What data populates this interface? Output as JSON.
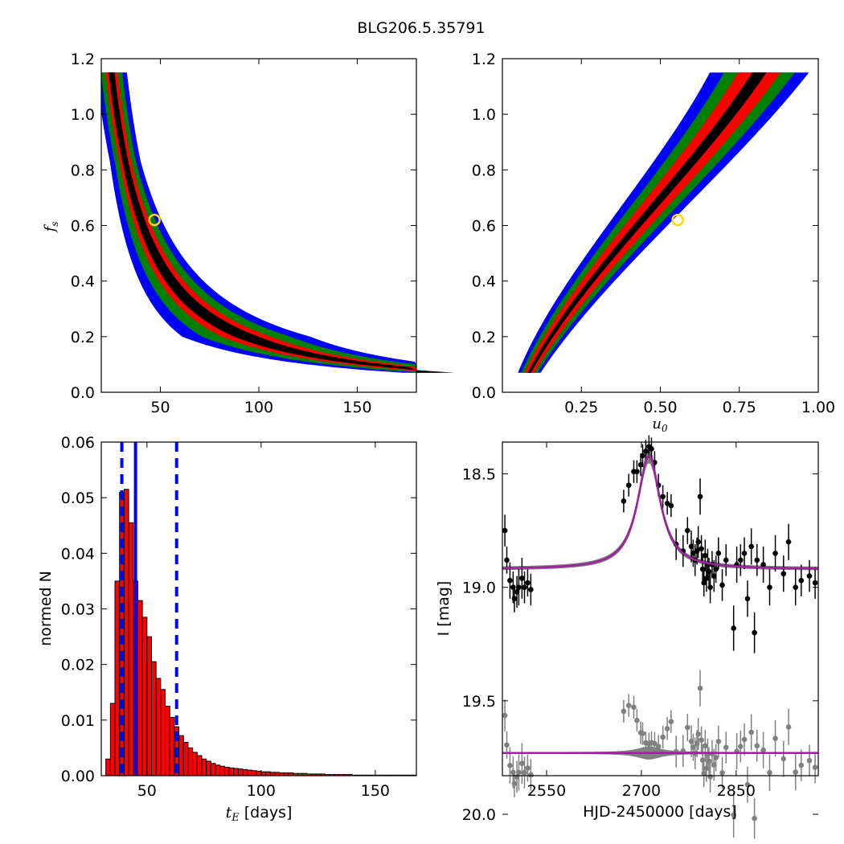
{
  "figure_title": "BLG206.5.35791",
  "colors": {
    "sigma1": "#ff0000",
    "sigma2": "#008000",
    "sigma3": "#0000ff",
    "best": "#000000",
    "marker": "#ffd700",
    "model": "#a020a0",
    "band": "#808080"
  },
  "chart_data": [
    {
      "id": "fs_vs_tE",
      "type": "heatmap",
      "xlim": [
        20,
        180
      ],
      "ylim": [
        0.0,
        1.2
      ],
      "xticks": [
        50,
        100,
        150
      ],
      "yticks": [
        0.0,
        0.2,
        0.4,
        0.6,
        0.8,
        1.0,
        1.2
      ],
      "xtick_labels": [
        "50",
        "100",
        "150"
      ],
      "ytick_labels": [
        "0.0",
        "0.2",
        "0.4",
        "0.6",
        "0.8",
        "1.0",
        "1.2"
      ],
      "xlabel": "",
      "ylabel": "f_s",
      "ylabel_main": "f",
      "ylabel_sub": "s",
      "relation": "tE = 28 / fs^0.75",
      "fs_range": [
        0.07,
        1.15
      ],
      "widths_x": {
        "black": 2.5,
        "red": 5,
        "green": 9,
        "blue": 13
      },
      "best_fit": {
        "x": 47,
        "y": 0.62
      }
    },
    {
      "id": "fs_vs_u0",
      "type": "heatmap",
      "xlim": [
        0.0,
        1.0
      ],
      "ylim": [
        0.0,
        1.2
      ],
      "xticks": [
        0.25,
        0.5,
        0.75,
        1.0
      ],
      "yticks": [
        0.0,
        0.2,
        0.4,
        0.6,
        0.8,
        1.0,
        1.2
      ],
      "xtick_labels": [
        "0.25",
        "0.50",
        "0.75",
        "1.00"
      ],
      "ytick_labels": [
        "0.0",
        "0.2",
        "0.4",
        "0.6",
        "0.8",
        "1.0",
        "1.2"
      ],
      "xlabel": "u_0",
      "xlabel_main": "u",
      "xlabel_sub": "0",
      "ylabel": "",
      "relation": "u0 = 0.085 + 0.47*(fs-0.07) + 0.47*(fs-0.07)^2 - 0.26*(fs-0.07)^3",
      "fs_range": [
        0.07,
        1.15
      ],
      "widths_x": {
        "black": 0.01,
        "red": 0.03,
        "green": 0.05,
        "blue": 0.07
      },
      "best_fit": {
        "x": 0.555,
        "y": 0.62
      }
    },
    {
      "id": "tE_histogram",
      "type": "bar",
      "xlim": [
        30,
        168
      ],
      "ylim": [
        0.0,
        0.06
      ],
      "xticks": [
        50,
        100,
        150
      ],
      "yticks": [
        0.0,
        0.01,
        0.02,
        0.03,
        0.04,
        0.05,
        0.06
      ],
      "xtick_labels": [
        "50",
        "100",
        "150"
      ],
      "ytick_labels": [
        "0.00",
        "0.01",
        "0.02",
        "0.03",
        "0.04",
        "0.05",
        "0.06"
      ],
      "xlabel": "t_E [days]",
      "xlabel_main": "t",
      "xlabel_sub": "E",
      "xlabel_rest": " [days]",
      "ylabel": "normed N",
      "bin_start": 32,
      "bin_width": 2,
      "values": [
        0.003,
        0.013,
        0.035,
        0.051,
        0.0515,
        0.0455,
        0.035,
        0.0315,
        0.0285,
        0.025,
        0.0205,
        0.0175,
        0.0155,
        0.0125,
        0.0105,
        0.0088,
        0.0072,
        0.006,
        0.005,
        0.0042,
        0.0036,
        0.003,
        0.0026,
        0.0022,
        0.0019,
        0.0017,
        0.0015,
        0.0014,
        0.0013,
        0.0012,
        0.0011,
        0.001,
        0.0009,
        0.0008,
        0.0007,
        0.0007,
        0.0006,
        0.0006,
        0.0005,
        0.0005,
        0.0005,
        0.0004,
        0.0004,
        0.0004,
        0.0003,
        0.0003,
        0.0003,
        0.0003,
        0.0002,
        0.0002,
        0.0002,
        0.0002,
        0.0002,
        0.0002,
        0.0001,
        0.0001,
        0.0001,
        0.0001,
        0.0001,
        0.0001,
        0.0001,
        0.0001,
        0.0001,
        0.0001,
        0.0001,
        0.0001,
        0.0001,
        0.0001
      ],
      "vlines": {
        "median": 45,
        "lower": 39,
        "upper": 63
      }
    },
    {
      "id": "light_curve",
      "type": "scatter",
      "xlim": [
        2480,
        2980
      ],
      "ylim": [
        19.83,
        18.36
      ],
      "xticks": [
        2550,
        2700,
        2850
      ],
      "yticks": [
        18.5,
        19.0,
        19.5,
        20.0
      ],
      "xtick_labels": [
        "2550",
        "2700",
        "2850"
      ],
      "ytick_labels": [
        "18.5",
        "19.0",
        "19.5",
        "20.0"
      ],
      "xlabel": "HJD-2450000 [days]",
      "ylabel": "I [mag]",
      "model": {
        "baseline": 18.92,
        "amplitude": 0.5,
        "t0": 2712,
        "width": 22
      },
      "residual_offset": 19.73,
      "points": [
        [
          2484,
          18.75,
          0.07
        ],
        [
          2487,
          18.88,
          0.06
        ],
        [
          2492,
          18.97,
          0.08
        ],
        [
          2497,
          19.0,
          0.07
        ],
        [
          2499,
          19.05,
          0.06
        ],
        [
          2503,
          19.02,
          0.07
        ],
        [
          2506,
          19.0,
          0.08
        ],
        [
          2511,
          18.96,
          0.09
        ],
        [
          2515,
          19.0,
          0.07
        ],
        [
          2520,
          18.98,
          0.06
        ],
        [
          2525,
          19.01,
          0.07
        ],
        [
          2672,
          18.62,
          0.05
        ],
        [
          2680,
          18.55,
          0.05
        ],
        [
          2688,
          18.49,
          0.05
        ],
        [
          2693,
          18.49,
          0.05
        ],
        [
          2699,
          18.46,
          0.05
        ],
        [
          2702,
          18.42,
          0.05
        ],
        [
          2707,
          18.4,
          0.05
        ],
        [
          2712,
          18.38,
          0.05
        ],
        [
          2716,
          18.39,
          0.05
        ],
        [
          2721,
          18.45,
          0.05
        ],
        [
          2727,
          18.55,
          0.05
        ],
        [
          2734,
          18.6,
          0.05
        ],
        [
          2741,
          18.63,
          0.05
        ],
        [
          2747,
          18.64,
          0.05
        ],
        [
          2755,
          18.81,
          0.07
        ],
        [
          2766,
          18.84,
          0.07
        ],
        [
          2773,
          18.75,
          0.06
        ],
        [
          2779,
          18.82,
          0.07
        ],
        [
          2782,
          18.85,
          0.06
        ],
        [
          2785,
          18.88,
          0.07
        ],
        [
          2788,
          18.84,
          0.06
        ],
        [
          2790,
          18.8,
          0.07
        ],
        [
          2793,
          18.6,
          0.08
        ],
        [
          2795,
          18.83,
          0.06
        ],
        [
          2797,
          18.92,
          0.07
        ],
        [
          2799,
          18.98,
          0.06
        ],
        [
          2801,
          18.86,
          0.07
        ],
        [
          2803,
          18.96,
          0.06
        ],
        [
          2805,
          18.9,
          0.07
        ],
        [
          2807,
          18.93,
          0.06
        ],
        [
          2809,
          19.0,
          0.07
        ],
        [
          2812,
          18.9,
          0.06
        ],
        [
          2815,
          18.95,
          0.07
        ],
        [
          2818,
          18.92,
          0.06
        ],
        [
          2822,
          18.85,
          0.07
        ],
        [
          2828,
          18.99,
          0.07
        ],
        [
          2834,
          18.88,
          0.07
        ],
        [
          2846,
          19.18,
          0.1
        ],
        [
          2851,
          18.9,
          0.08
        ],
        [
          2857,
          18.88,
          0.07
        ],
        [
          2863,
          18.85,
          0.07
        ],
        [
          2868,
          19.05,
          0.08
        ],
        [
          2874,
          18.82,
          0.08
        ],
        [
          2879,
          19.2,
          0.09
        ],
        [
          2883,
          18.88,
          0.07
        ],
        [
          2893,
          18.9,
          0.08
        ],
        [
          2903,
          19.0,
          0.08
        ],
        [
          2912,
          18.85,
          0.08
        ],
        [
          2925,
          18.94,
          0.08
        ],
        [
          2933,
          18.8,
          0.08
        ],
        [
          2944,
          19.0,
          0.08
        ],
        [
          2953,
          18.97,
          0.07
        ],
        [
          2966,
          18.95,
          0.07
        ],
        [
          2975,
          18.98,
          0.07
        ]
      ]
    }
  ]
}
